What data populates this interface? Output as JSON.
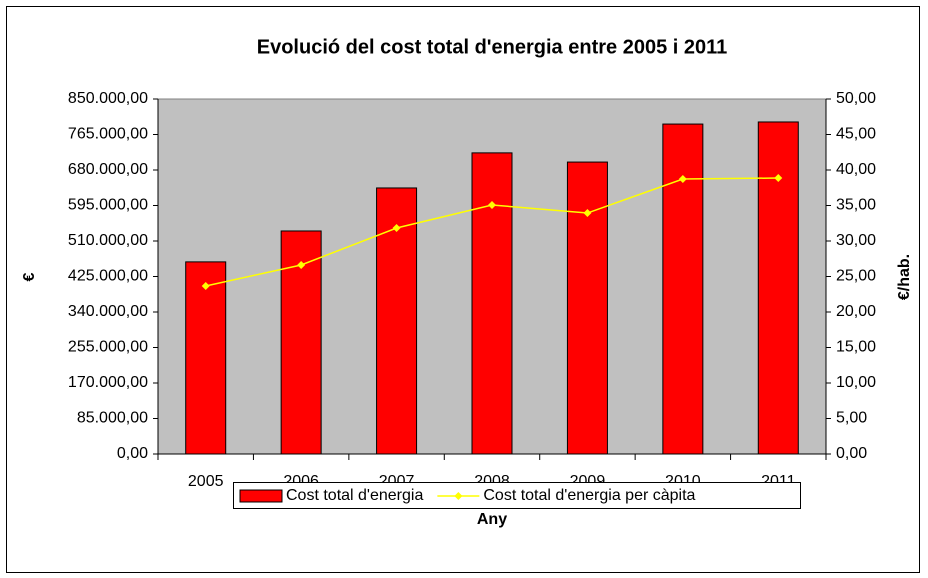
{
  "chart_data": {
    "type": "bar",
    "title": "Evolució del cost total d'energia entre 2005 i 2011",
    "x_label": "Any",
    "y_label": "€",
    "y2_label": "€/hab.",
    "categories": [
      "2005",
      "2006",
      "2007",
      "2008",
      "2009",
      "2010",
      "2011"
    ],
    "series": [
      {
        "name": "Cost total d'energia",
        "type": "bar",
        "color": "#ff0000",
        "axis": "y",
        "values": [
          460000,
          534000,
          637000,
          721000,
          699000,
          790000,
          795000
        ]
      },
      {
        "name": "Cost total d'energia per càpita",
        "type": "line",
        "color": "#ffff00",
        "axis": "y2",
        "values": [
          23.66,
          26.62,
          31.83,
          35.07,
          33.94,
          38.73,
          38.87
        ]
      }
    ],
    "ylim": [
      0,
      850000
    ],
    "yticks": [
      {
        "value": 0,
        "label": "0,00"
      },
      {
        "value": 85000,
        "label": "85.000,00"
      },
      {
        "value": 170000,
        "label": "170.000,00"
      },
      {
        "value": 255000,
        "label": "255.000,00"
      },
      {
        "value": 340000,
        "label": "340.000,00"
      },
      {
        "value": 425000,
        "label": "425.000,00"
      },
      {
        "value": 510000,
        "label": "510.000,00"
      },
      {
        "value": 595000,
        "label": "595.000,00"
      },
      {
        "value": 680000,
        "label": "680.000,00"
      },
      {
        "value": 765000,
        "label": "765.000,00"
      },
      {
        "value": 850000,
        "label": "850.000,00"
      }
    ],
    "y2lim": [
      0,
      50
    ],
    "y2ticks": [
      {
        "value": 0,
        "label": "0,00"
      },
      {
        "value": 5,
        "label": "5,00"
      },
      {
        "value": 10,
        "label": "10,00"
      },
      {
        "value": 15,
        "label": "15,00"
      },
      {
        "value": 20,
        "label": "20,00"
      },
      {
        "value": 25,
        "label": "25,00"
      },
      {
        "value": 30,
        "label": "30,00"
      },
      {
        "value": 35,
        "label": "35,00"
      },
      {
        "value": 40,
        "label": "40,00"
      },
      {
        "value": 45,
        "label": "45,00"
      },
      {
        "value": 50,
        "label": "50,00"
      }
    ],
    "grid": false,
    "plot_background": "#c0c0c0",
    "legend_position": "bottom"
  }
}
